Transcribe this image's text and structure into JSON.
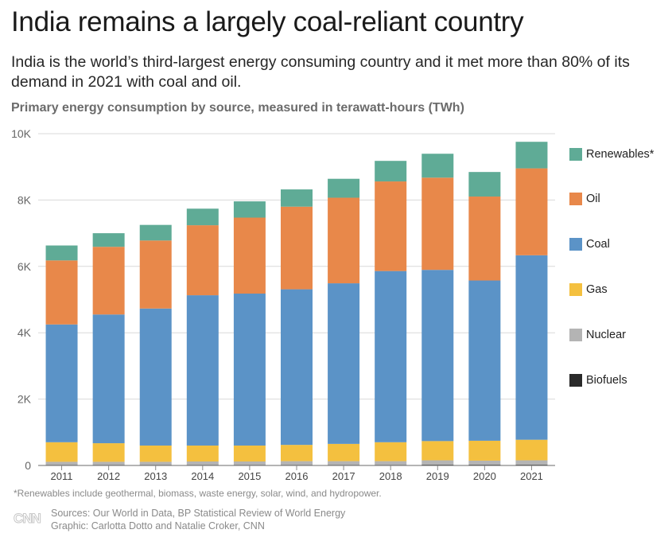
{
  "title": "India remains a largely coal-reliant country",
  "subtitle": "India is the world’s third-largest energy consuming country and it met more than 80% of its demand in 2021 with coal and oil.",
  "chart_label": "Primary energy consumption by source, measured in terawatt-hours (TWh)",
  "footnote": "*Renewables include geothermal, biomass, waste energy, solar, wind, and hydropower.",
  "logo_text": "CNN",
  "sources_line": "Sources:  Our World in Data, BP Statistical Review of World Energy",
  "graphic_line": "Graphic: Carlotta Dotto and Natalie Croker, CNN",
  "colors": {
    "Biofuels": "#2a2a2a",
    "Nuclear": "#b4b4b4",
    "Gas": "#f4c03f",
    "Coal": "#5b93c7",
    "Oil": "#e8884a",
    "Renewables*": "#5fab96",
    "axis": "#888888",
    "grid": "#d9d9d9"
  },
  "legend": [
    {
      "name": "Renewables*",
      "icon": "square"
    },
    {
      "name": "Oil",
      "icon": "square"
    },
    {
      "name": "Coal",
      "icon": "square"
    },
    {
      "name": "Gas",
      "icon": "square"
    },
    {
      "name": "Nuclear",
      "icon": "square"
    },
    {
      "name": "Biofuels",
      "icon": "square"
    }
  ],
  "chart_data": {
    "type": "bar",
    "stacked": true,
    "categories": [
      "2011",
      "2012",
      "2013",
      "2014",
      "2015",
      "2016",
      "2017",
      "2018",
      "2019",
      "2020",
      "2021"
    ],
    "series": [
      {
        "name": "Biofuels",
        "values": [
          20,
          20,
          20,
          20,
          20,
          20,
          20,
          20,
          25,
          25,
          25
        ]
      },
      {
        "name": "Nuclear",
        "values": [
          90,
          90,
          90,
          100,
          100,
          110,
          110,
          110,
          130,
          120,
          130
        ]
      },
      {
        "name": "Gas",
        "values": [
          590,
          560,
          490,
          480,
          480,
          490,
          520,
          570,
          580,
          600,
          620
        ]
      },
      {
        "name": "Coal",
        "values": [
          3550,
          3880,
          4130,
          4530,
          4580,
          4690,
          4840,
          5160,
          5160,
          4830,
          5560
        ]
      },
      {
        "name": "Oil",
        "values": [
          1930,
          2040,
          2050,
          2110,
          2290,
          2490,
          2580,
          2700,
          2780,
          2530,
          2620
        ]
      },
      {
        "name": "Renewables*",
        "values": [
          450,
          410,
          470,
          500,
          490,
          520,
          570,
          620,
          720,
          740,
          800
        ]
      }
    ],
    "yticks": [
      "0",
      "2K",
      "4K",
      "6K",
      "8K",
      "10K"
    ],
    "ylim": [
      0,
      10000
    ],
    "grid": true,
    "legend_position": "right"
  }
}
